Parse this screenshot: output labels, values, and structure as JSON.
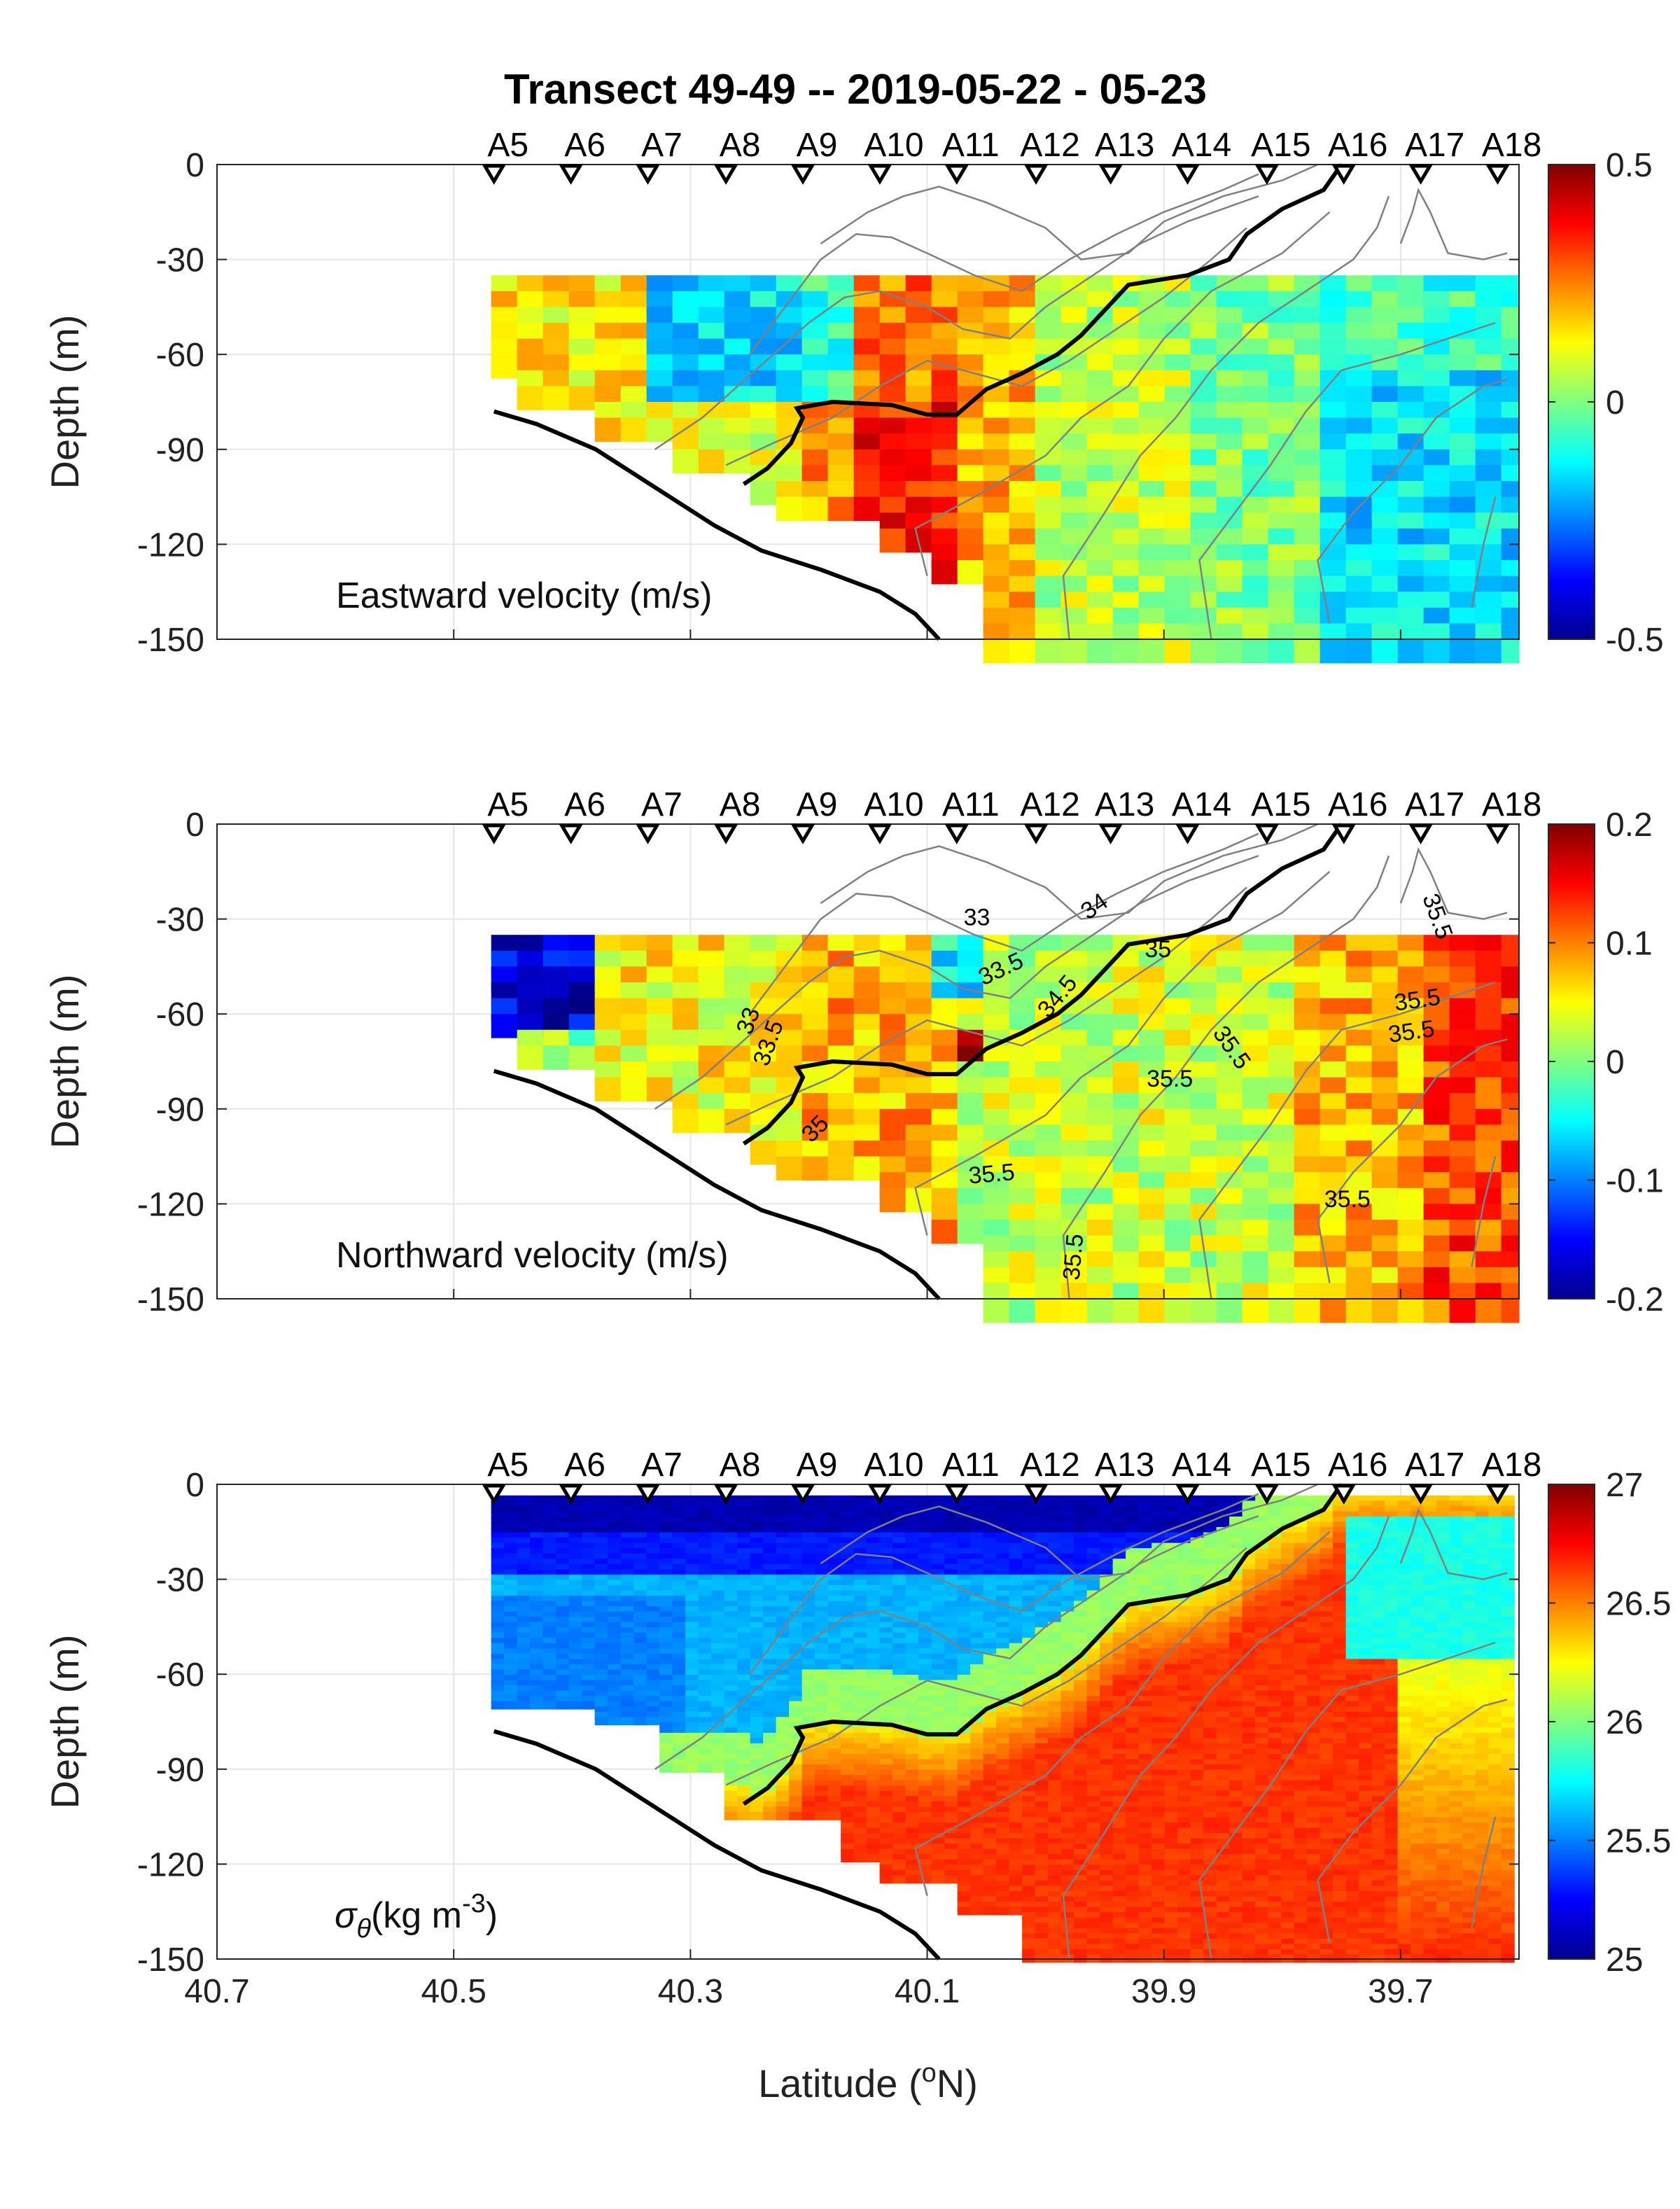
{
  "chart_data": {
    "title": "Transect 49-49 -- 2019-05-22 - 05-23",
    "type": "heatmap",
    "xlabel_main": "Latitude (",
    "xlabel_sup": "o",
    "xlabel_end": "N)",
    "ylabel": "Depth (m)",
    "x_ticks": [
      "40.7",
      "40.5",
      "40.3",
      "40.1",
      "39.9",
      "39.7"
    ],
    "x_range": [
      40.7,
      39.6
    ],
    "y_ticks": [
      "0",
      "-30",
      "-60",
      "-90",
      "-120",
      "-150"
    ],
    "y_range": [
      -150,
      0
    ],
    "stations": [
      {
        "name": "A5",
        "lat": 40.466
      },
      {
        "name": "A6",
        "lat": 40.401
      },
      {
        "name": "A7",
        "lat": 40.336
      },
      {
        "name": "A8",
        "lat": 40.27
      },
      {
        "name": "A9",
        "lat": 40.205
      },
      {
        "name": "A10",
        "lat": 40.14
      },
      {
        "name": "A11",
        "lat": 40.075
      },
      {
        "name": "A12",
        "lat": 40.008
      },
      {
        "name": "A13",
        "lat": 39.945
      },
      {
        "name": "A14",
        "lat": 39.88
      },
      {
        "name": "A15",
        "lat": 39.813
      },
      {
        "name": "A16",
        "lat": 39.748
      },
      {
        "name": "A17",
        "lat": 39.683
      },
      {
        "name": "A18",
        "lat": 39.618
      }
    ],
    "bottom_line": [
      [
        40.466,
        -78
      ],
      [
        40.43,
        -82
      ],
      [
        40.38,
        -90
      ],
      [
        40.33,
        -102
      ],
      [
        40.28,
        -114
      ],
      [
        40.24,
        -122
      ],
      [
        40.19,
        -128
      ],
      [
        40.14,
        -135
      ],
      [
        40.11,
        -142
      ],
      [
        40.09,
        -150
      ]
    ],
    "front_line": [
      [
        40.255,
        -101
      ],
      [
        40.235,
        -96
      ],
      [
        40.215,
        -88
      ],
      [
        40.205,
        -80
      ],
      [
        40.21,
        -77
      ],
      [
        40.18,
        -75
      ],
      [
        40.13,
        -76
      ],
      [
        40.1,
        -79
      ],
      [
        40.075,
        -79
      ],
      [
        40.05,
        -71
      ],
      [
        40.02,
        -66
      ],
      [
        39.99,
        -60
      ],
      [
        39.97,
        -54
      ],
      [
        39.95,
        -46
      ],
      [
        39.93,
        -38
      ],
      [
        39.88,
        -35
      ],
      [
        39.845,
        -30
      ],
      [
        39.83,
        -22
      ],
      [
        39.8,
        -14
      ],
      [
        39.765,
        -8
      ],
      [
        39.75,
        0
      ]
    ],
    "panels": [
      {
        "label": "Eastward velocity (m/s)",
        "sigma": false,
        "colorbar_ticks": [
          "0.5",
          "0",
          "-0.5"
        ],
        "clim": [
          -0.5,
          0.5
        ],
        "contour_labels": []
      },
      {
        "label": "Northward velocity (m/s)",
        "sigma": false,
        "colorbar_ticks": [
          "0.2",
          "0.1",
          "0",
          "-0.1",
          "-0.2"
        ],
        "clim": [
          -0.2,
          0.2
        ],
        "contour_labels": [
          {
            "text": "33",
            "lat": 40.058,
            "depth": -32,
            "rot": 0
          },
          {
            "text": "34",
            "lat": 39.955,
            "depth": -28,
            "rot": -35
          },
          {
            "text": "35.5",
            "lat": 39.675,
            "depth": -30,
            "rot": 70
          },
          {
            "text": "33.5",
            "lat": 40.035,
            "depth": -48,
            "rot": -25
          },
          {
            "text": "35",
            "lat": 39.905,
            "depth": -42,
            "rot": 0
          },
          {
            "text": "34.5",
            "lat": 39.985,
            "depth": -56,
            "rot": -50
          },
          {
            "text": "33",
            "lat": 40.245,
            "depth": -63,
            "rot": -70
          },
          {
            "text": "33.5",
            "lat": 40.228,
            "depth": -70,
            "rot": -70
          },
          {
            "text": "35.5",
            "lat": 39.685,
            "depth": -58,
            "rot": -8
          },
          {
            "text": "35.5",
            "lat": 39.69,
            "depth": -68,
            "rot": -8
          },
          {
            "text": "35.5",
            "lat": 39.848,
            "depth": -72,
            "rot": 55
          },
          {
            "text": "35.5",
            "lat": 39.895,
            "depth": -83,
            "rot": 0
          },
          {
            "text": "35",
            "lat": 40.19,
            "depth": -98,
            "rot": -45
          },
          {
            "text": "35.5",
            "lat": 40.045,
            "depth": -113,
            "rot": -5
          },
          {
            "text": "35.5",
            "lat": 39.745,
            "depth": -121,
            "rot": 0
          },
          {
            "text": "35.5",
            "lat": 39.97,
            "depth": -137,
            "rot": -85
          }
        ]
      },
      {
        "label": "(kg m",
        "label_symbol": "σ",
        "label_subscript": "θ",
        "label_sup": "-3",
        "label_end": ")",
        "sigma": true,
        "colorbar_ticks": [
          "27",
          "26.5",
          "26",
          "25.5",
          "25"
        ],
        "clim": [
          25,
          27
        ],
        "contour_labels": []
      }
    ]
  }
}
